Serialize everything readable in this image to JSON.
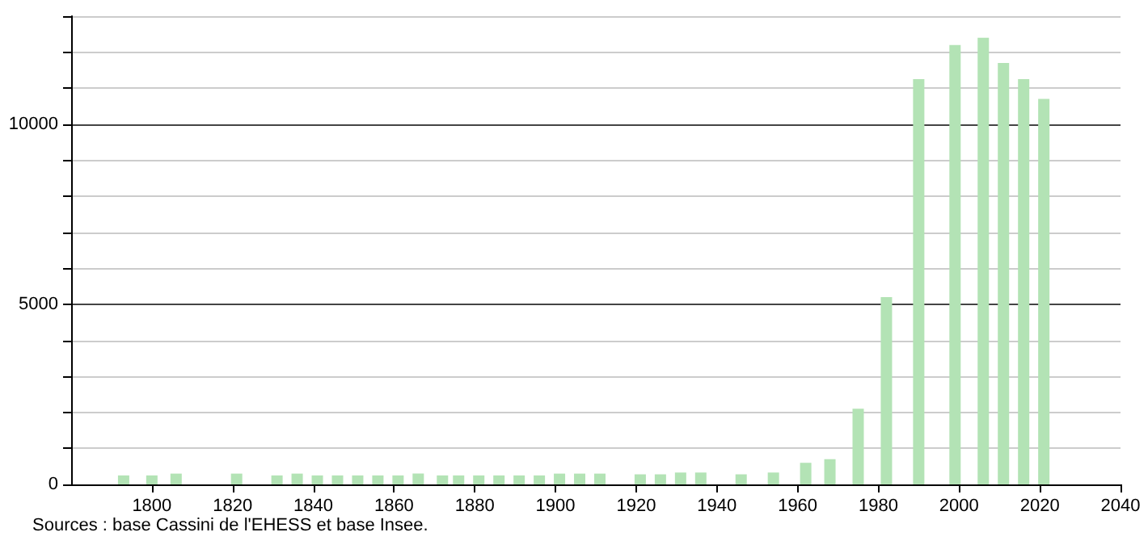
{
  "chart_data": {
    "type": "bar",
    "x": [
      1793,
      1800,
      1806,
      1821,
      1831,
      1836,
      1841,
      1846,
      1851,
      1856,
      1861,
      1866,
      1872,
      1876,
      1881,
      1886,
      1891,
      1896,
      1901,
      1906,
      1911,
      1921,
      1926,
      1931,
      1936,
      1946,
      1954,
      1962,
      1968,
      1975,
      1982,
      1990,
      1999,
      2006,
      2011,
      2016,
      2021
    ],
    "values": [
      250,
      250,
      300,
      300,
      250,
      300,
      250,
      250,
      250,
      250,
      250,
      300,
      250,
      250,
      250,
      250,
      250,
      250,
      300,
      300,
      300,
      280,
      280,
      330,
      330,
      280,
      330,
      600,
      700,
      2100,
      5200,
      11250,
      12200,
      12400,
      11700,
      11250,
      10700
    ],
    "color": "#b3e3b5",
    "xlim": [
      1780,
      2040
    ],
    "xticks": [
      1800,
      1820,
      1840,
      1860,
      1880,
      1900,
      1920,
      1940,
      1960,
      1980,
      2000,
      2020,
      2040
    ],
    "ylim": [
      0,
      13000
    ],
    "yticks": [
      0,
      {
        "value": 1000,
        "label": null
      },
      {
        "value": 2000,
        "label": null
      },
      {
        "value": 3000,
        "label": null
      },
      {
        "value": 4000,
        "label": null
      },
      5000,
      {
        "value": 6000,
        "label": null
      },
      {
        "value": 7000,
        "label": null
      },
      {
        "value": 8000,
        "label": null
      },
      {
        "value": 9000,
        "label": null
      },
      10000,
      {
        "value": 11000,
        "label": null
      },
      {
        "value": 12000,
        "label": null
      },
      {
        "value": 13000,
        "label": null
      }
    ],
    "grid": "y",
    "annotations": [
      "Sources : base Cassini de l'EHESS et base Insee."
    ]
  }
}
